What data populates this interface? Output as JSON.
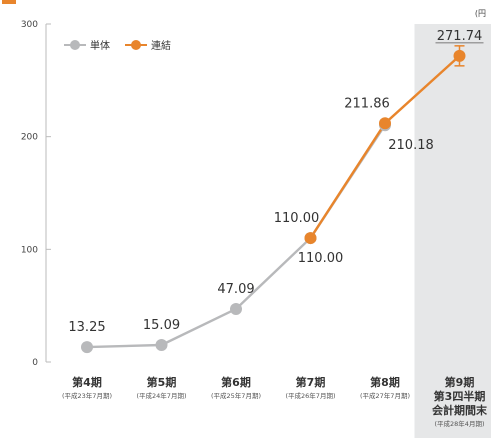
{
  "chart_data": {
    "type": "line",
    "unit": "(円",
    "ylim": [
      0,
      300
    ],
    "yticks": [
      "0",
      "100",
      "200",
      "300"
    ],
    "categories": [
      {
        "label": "第4期",
        "sub": "(平成23年7月期)"
      },
      {
        "label": "第5期",
        "sub": "(平成24年7月期)"
      },
      {
        "label": "第6期",
        "sub": "(平成25年7月期)"
      },
      {
        "label": "第7期",
        "sub": "(平成26年7月期)"
      },
      {
        "label": "第8期",
        "sub": "(平成27年7月期)"
      },
      {
        "label": "第9期",
        "sub2": "第3四半期",
        "sub3": "会計期間末",
        "sub": "(平成28年4月期)"
      }
    ],
    "series": [
      {
        "name": "単体",
        "color": "#b8b9bb",
        "values": [
          13.25,
          15.09,
          47.09,
          110.0,
          210.18,
          null
        ],
        "labels": [
          "13.25",
          "15.09",
          "47.09",
          "110.00",
          "210.18",
          ""
        ]
      },
      {
        "name": "連結",
        "color": "#e8852c",
        "values": [
          null,
          null,
          null,
          110.0,
          211.86,
          271.74
        ],
        "labels": [
          "",
          "",
          "",
          "110.00",
          "211.86",
          "271.74"
        ]
      }
    ],
    "highlight_category": 5,
    "highlight_color": "#e6e7e8",
    "legend": "top-left",
    "grid": false
  }
}
